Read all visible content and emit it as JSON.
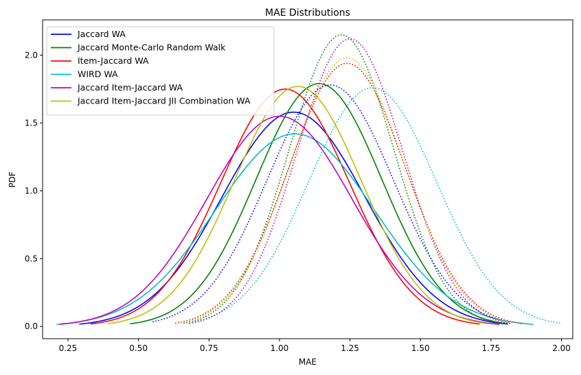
{
  "chart_data": {
    "type": "line",
    "title": "MAE Distributions",
    "xlabel": "MAE",
    "ylabel": "PDF",
    "xlim": [
      0.16,
      2.04
    ],
    "ylim": [
      -0.09,
      2.26
    ],
    "xticks": [
      "0.25",
      "0.50",
      "0.75",
      "1.00",
      "1.25",
      "1.50",
      "1.75",
      "2.00"
    ],
    "yticks": [
      "0.0",
      "0.5",
      "1.0",
      "1.5",
      "2.0"
    ],
    "grid": false,
    "legend_position": "top-left",
    "series": [
      {
        "name": "Jaccard WA",
        "color": "#0000ff",
        "style": "solid",
        "distribution": "normal",
        "mean": 1.05,
        "peak": 1.58,
        "x_range": [
          0.29,
          1.81
        ]
      },
      {
        "name": "Jaccard Monte-Carlo Random Walk",
        "color": "#008000",
        "style": "solid",
        "distribution": "normal",
        "mean": 1.14,
        "peak": 1.79,
        "x_range": [
          0.47,
          1.81
        ]
      },
      {
        "name": "Item-Jaccard WA",
        "color": "#ff0000",
        "style": "solid",
        "distribution": "normal",
        "mean": 1.02,
        "peak": 1.75,
        "x_range": [
          0.33,
          1.71
        ]
      },
      {
        "name": "WIRD WA",
        "color": "#00bfbf",
        "style": "solid",
        "distribution": "normal",
        "mean": 1.055,
        "peak": 1.42,
        "x_range": [
          0.21,
          1.9
        ]
      },
      {
        "name": "Jaccard Item-Jaccard WA",
        "color": "#bf00bf",
        "style": "solid",
        "distribution": "normal",
        "mean": 1.0,
        "peak": 1.55,
        "x_range": [
          0.22,
          1.78
        ]
      },
      {
        "name": "Jaccard Item-Jaccard JII Combination WA",
        "color": "#bfbf00",
        "style": "solid",
        "distribution": "normal",
        "mean": 1.065,
        "peak": 1.77,
        "x_range": [
          0.39,
          1.74
        ]
      },
      {
        "color": "#0000ff",
        "style": "dotted",
        "distribution": "normal",
        "mean": 1.18,
        "peak": 1.78,
        "x_range": [
          0.55,
          1.82
        ]
      },
      {
        "color": "#008000",
        "style": "dotted",
        "distribution": "normal",
        "mean": 1.22,
        "peak": 2.15,
        "x_range": [
          0.66,
          1.78
        ]
      },
      {
        "color": "#ff0000",
        "style": "dotted",
        "distribution": "normal",
        "mean": 1.24,
        "peak": 1.94,
        "x_range": [
          0.63,
          1.86
        ]
      },
      {
        "color": "#00bfbf",
        "style": "dotted",
        "distribution": "normal",
        "mean": 1.33,
        "peak": 1.76,
        "x_range": [
          0.69,
          2.0
        ]
      },
      {
        "color": "#bf00bf",
        "style": "dotted",
        "distribution": "normal",
        "mean": 1.25,
        "peak": 2.12,
        "x_range": [
          0.68,
          1.82
        ]
      },
      {
        "color": "#bfbf00",
        "style": "dotted",
        "distribution": "normal",
        "mean": 1.24,
        "peak": 1.98,
        "x_range": [
          0.66,
          1.83
        ]
      }
    ]
  }
}
